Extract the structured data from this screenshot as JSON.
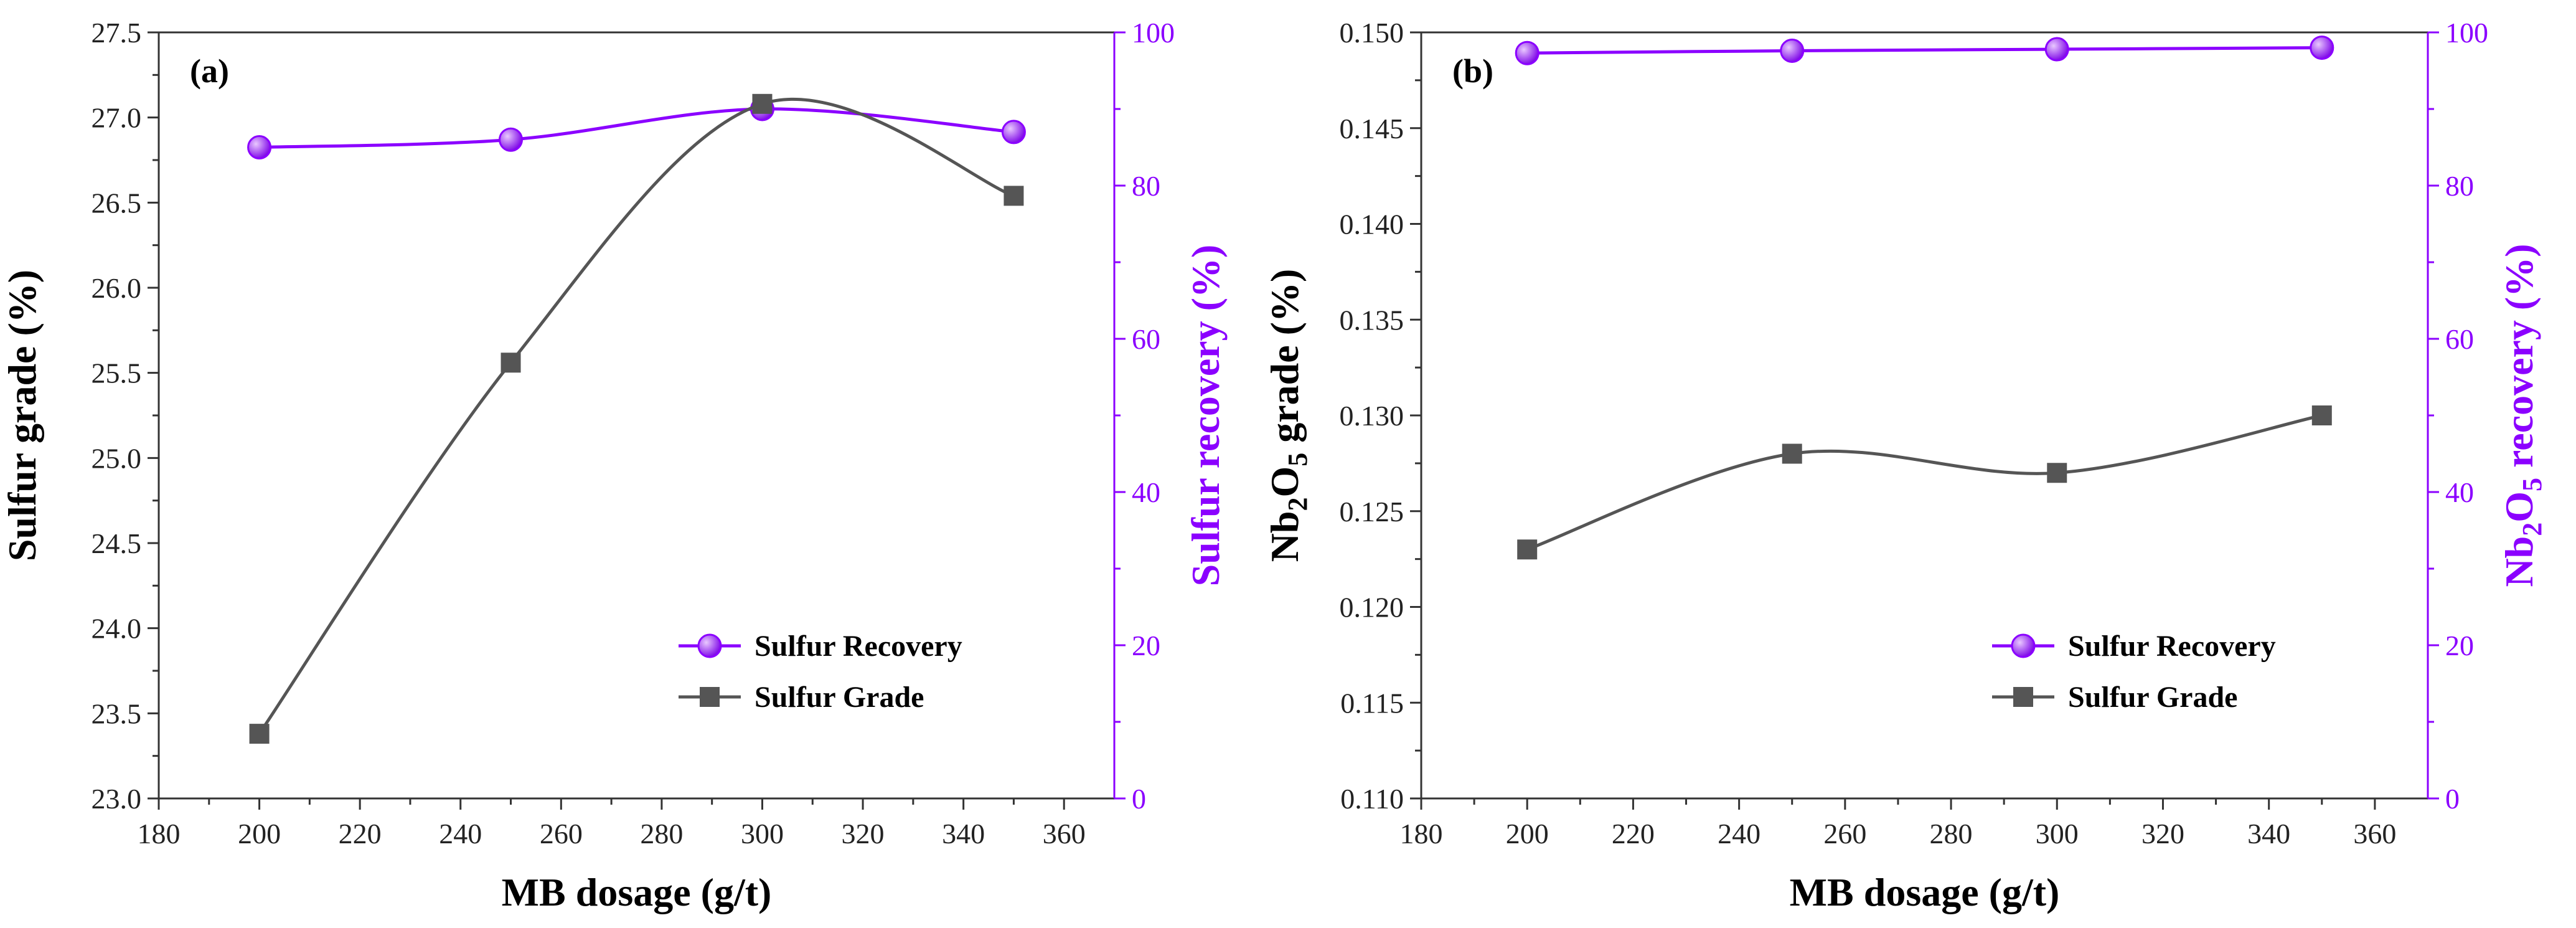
{
  "chart_data": [
    {
      "type": "line",
      "panel_label": "(a)",
      "xlabel": "MB dosage (g/t)",
      "ylabel_left": "Sulfur grade (%)",
      "ylabel_right": "Sulfur recovery (%)",
      "xlim": [
        180,
        370
      ],
      "x_ticks": [
        180,
        200,
        220,
        240,
        260,
        280,
        300,
        320,
        340,
        360
      ],
      "ylim_left": [
        23.0,
        27.5
      ],
      "y_ticks_left": [
        23.0,
        23.5,
        24.0,
        24.5,
        25.0,
        25.5,
        26.0,
        26.5,
        27.0,
        27.5
      ],
      "y_tick_labels_left": [
        "23.0",
        "23.5",
        "24.0",
        "24.5",
        "25.0",
        "25.5",
        "26.0",
        "26.5",
        "27.0",
        "27.5"
      ],
      "ylim_right": [
        0,
        100
      ],
      "y_ticks_right": [
        0,
        20,
        40,
        60,
        80,
        100
      ],
      "legend_position": "bottom-right",
      "series": [
        {
          "name": "Sulfur Recovery",
          "axis": "right",
          "marker": "circle",
          "color": "#8B00FF",
          "x": [
            200,
            250,
            300,
            350
          ],
          "values": [
            85.0,
            86.0,
            90.0,
            87.0
          ]
        },
        {
          "name": "Sulfur Grade",
          "axis": "left",
          "marker": "square",
          "color": "#555555",
          "x": [
            200,
            250,
            300,
            350
          ],
          "values": [
            23.38,
            25.56,
            27.08,
            26.54
          ]
        }
      ]
    },
    {
      "type": "line",
      "panel_label": "(b)",
      "xlabel": "MB dosage (g/t)",
      "ylabel_left_parts": [
        "Nb",
        "2",
        "O",
        "5",
        " grade (%)"
      ],
      "ylabel_right_parts": [
        "Nb",
        "2",
        "O",
        "5",
        " recovery (%)"
      ],
      "xlim": [
        180,
        370
      ],
      "x_ticks": [
        180,
        200,
        220,
        240,
        260,
        280,
        300,
        320,
        340,
        360
      ],
      "ylim_left": [
        0.11,
        0.15
      ],
      "y_ticks_left": [
        0.11,
        0.115,
        0.12,
        0.125,
        0.13,
        0.135,
        0.14,
        0.145,
        0.15
      ],
      "y_tick_labels_left": [
        "0.110",
        "0.115",
        "0.120",
        "0.125",
        "0.130",
        "0.135",
        "0.140",
        "0.145",
        "0.150"
      ],
      "ylim_right": [
        0,
        100
      ],
      "y_ticks_right": [
        0,
        20,
        40,
        60,
        80,
        100
      ],
      "legend_position": "bottom-right",
      "series": [
        {
          "name": "Sulfur Recovery",
          "axis": "right",
          "marker": "circle",
          "color": "#8B00FF",
          "x": [
            200,
            250,
            300,
            350
          ],
          "values": [
            97.3,
            97.6,
            97.8,
            98.0
          ]
        },
        {
          "name": "Sulfur Grade",
          "axis": "left",
          "marker": "square",
          "color": "#555555",
          "x": [
            200,
            250,
            300,
            350
          ],
          "values": [
            0.123,
            0.128,
            0.127,
            0.13
          ]
        }
      ]
    }
  ]
}
